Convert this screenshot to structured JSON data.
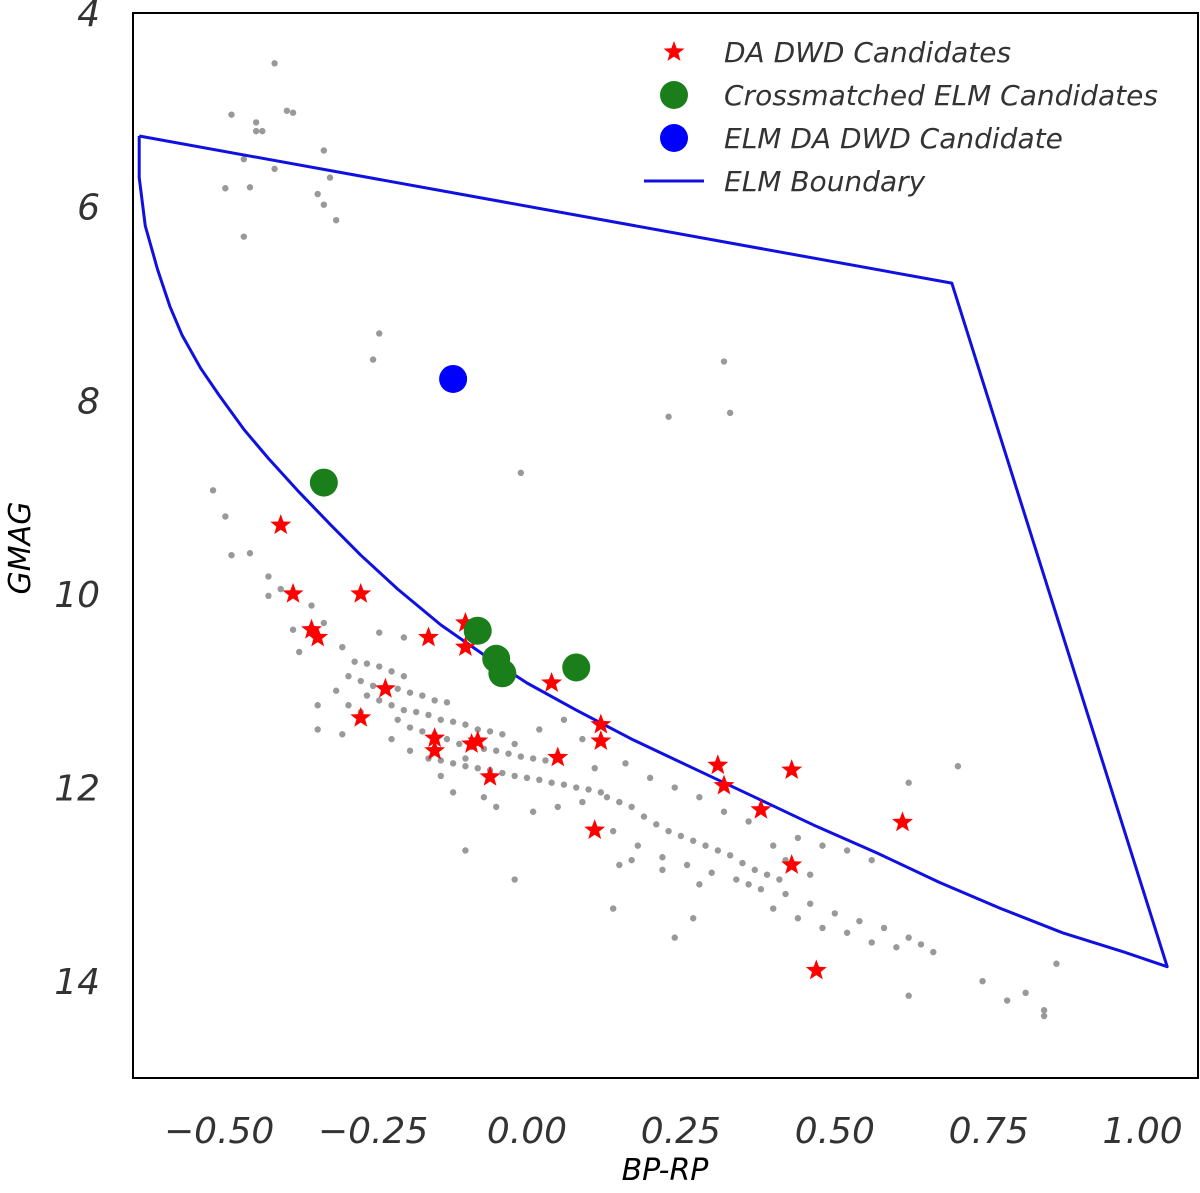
{
  "chart_data": {
    "type": "scatter",
    "title": "",
    "xlabel": "BP-RP",
    "ylabel": "GMAG",
    "xlim": [
      -0.64,
      1.09
    ],
    "ylim": [
      15.0,
      4.0
    ],
    "y_inverted": true,
    "grid": false,
    "legend_position": "top-right",
    "x_ticks": [
      {
        "value": -0.5,
        "label": "−0.50"
      },
      {
        "value": -0.25,
        "label": "−0.25"
      },
      {
        "value": 0.0,
        "label": "0.00"
      },
      {
        "value": 0.25,
        "label": "0.25"
      },
      {
        "value": 0.5,
        "label": "0.50"
      },
      {
        "value": 0.75,
        "label": "0.75"
      },
      {
        "value": 1.0,
        "label": "1.00"
      }
    ],
    "y_ticks": [
      {
        "value": 4,
        "label": "4"
      },
      {
        "value": 6,
        "label": "6"
      },
      {
        "value": 8,
        "label": "8"
      },
      {
        "value": 10,
        "label": "10"
      },
      {
        "value": 12,
        "label": "12"
      },
      {
        "value": 14,
        "label": "14"
      }
    ],
    "colors": {
      "background_points": "#999999",
      "da_dwd": "#ff0000",
      "crossmatched": "#1a7f1a",
      "elm_da_dwd": "#0000ff",
      "boundary": "#1010e0"
    },
    "series": [
      {
        "name": "DA DWD Candidates",
        "marker": "star",
        "color": "#ff0000",
        "points": [
          [
            -0.4,
            9.29
          ],
          [
            -0.38,
            10.0
          ],
          [
            -0.35,
            10.37
          ],
          [
            -0.34,
            10.45
          ],
          [
            -0.27,
            10.0
          ],
          [
            -0.27,
            11.28
          ],
          [
            -0.23,
            10.98
          ],
          [
            -0.16,
            10.45
          ],
          [
            -0.15,
            11.49
          ],
          [
            -0.15,
            11.62
          ],
          [
            -0.1,
            10.3
          ],
          [
            -0.1,
            10.55
          ],
          [
            -0.09,
            11.55
          ],
          [
            -0.08,
            11.52
          ],
          [
            -0.06,
            11.89
          ],
          [
            0.04,
            10.92
          ],
          [
            0.05,
            11.69
          ],
          [
            0.11,
            12.44
          ],
          [
            0.12,
            11.35
          ],
          [
            0.12,
            11.52
          ],
          [
            0.31,
            11.77
          ],
          [
            0.32,
            11.98
          ],
          [
            0.38,
            12.23
          ],
          [
            0.43,
            11.82
          ],
          [
            0.43,
            12.8
          ],
          [
            0.47,
            13.89
          ],
          [
            0.61,
            12.36
          ]
        ]
      },
      {
        "name": "Crossmatched ELM Candidates",
        "marker": "circle-large",
        "color": "#1a7f1a",
        "points": [
          [
            -0.33,
            8.85
          ],
          [
            -0.08,
            10.38
          ],
          [
            -0.05,
            10.67
          ],
          [
            -0.04,
            10.82
          ],
          [
            0.08,
            10.76
          ]
        ]
      },
      {
        "name": "ELM DA DWD Candidate",
        "marker": "circle-large",
        "color": "#0000ff",
        "points": [
          [
            -0.12,
            7.78
          ]
        ]
      },
      {
        "name": "",
        "marker": "dot",
        "color": "#999999",
        "points": [
          [
            -0.41,
            4.52
          ],
          [
            -0.39,
            5.01
          ],
          [
            -0.38,
            5.03
          ],
          [
            -0.48,
            5.05
          ],
          [
            -0.44,
            5.13
          ],
          [
            -0.44,
            5.22
          ],
          [
            -0.43,
            5.22
          ],
          [
            -0.33,
            5.42
          ],
          [
            -0.46,
            5.51
          ],
          [
            -0.41,
            5.61
          ],
          [
            -0.32,
            5.7
          ],
          [
            -0.45,
            5.8
          ],
          [
            -0.49,
            5.81
          ],
          [
            -0.34,
            5.87
          ],
          [
            -0.33,
            5.98
          ],
          [
            -0.31,
            6.14
          ],
          [
            -0.46,
            6.31
          ],
          [
            -0.24,
            7.31
          ],
          [
            -0.25,
            7.58
          ],
          [
            0.32,
            7.6
          ],
          [
            0.33,
            8.13
          ],
          [
            0.23,
            8.17
          ],
          [
            -0.01,
            8.75
          ],
          [
            -0.51,
            8.93
          ],
          [
            -0.49,
            9.2
          ],
          [
            -0.48,
            9.6
          ],
          [
            -0.45,
            9.58
          ],
          [
            -0.42,
            9.82
          ],
          [
            -0.4,
            9.95
          ],
          [
            -0.42,
            10.02
          ],
          [
            -0.35,
            10.12
          ],
          [
            -0.38,
            10.37
          ],
          [
            -0.24,
            10.4
          ],
          [
            -0.2,
            10.45
          ],
          [
            -0.28,
            10.7
          ],
          [
            -0.26,
            10.72
          ],
          [
            -0.24,
            10.75
          ],
          [
            -0.22,
            10.8
          ],
          [
            -0.2,
            10.85
          ],
          [
            -0.29,
            10.85
          ],
          [
            -0.27,
            10.9
          ],
          [
            -0.25,
            10.95
          ],
          [
            -0.21,
            10.98
          ],
          [
            -0.19,
            11.02
          ],
          [
            -0.17,
            11.05
          ],
          [
            -0.15,
            11.1
          ],
          [
            -0.13,
            11.12
          ],
          [
            -0.26,
            11.05
          ],
          [
            -0.24,
            11.1
          ],
          [
            -0.22,
            11.15
          ],
          [
            -0.2,
            11.2
          ],
          [
            -0.18,
            11.22
          ],
          [
            -0.16,
            11.25
          ],
          [
            -0.14,
            11.3
          ],
          [
            -0.12,
            11.32
          ],
          [
            -0.1,
            11.35
          ],
          [
            -0.08,
            11.4
          ],
          [
            -0.06,
            11.42
          ],
          [
            -0.04,
            11.45
          ],
          [
            -0.29,
            11.15
          ],
          [
            -0.27,
            11.22
          ],
          [
            -0.21,
            11.3
          ],
          [
            -0.19,
            11.38
          ],
          [
            -0.17,
            11.42
          ],
          [
            -0.15,
            11.45
          ],
          [
            -0.13,
            11.5
          ],
          [
            -0.11,
            11.55
          ],
          [
            -0.09,
            11.58
          ],
          [
            -0.07,
            11.6
          ],
          [
            -0.05,
            11.62
          ],
          [
            -0.03,
            11.65
          ],
          [
            -0.01,
            11.68
          ],
          [
            0.01,
            11.7
          ],
          [
            0.03,
            11.72
          ],
          [
            -0.16,
            11.7
          ],
          [
            -0.14,
            11.72
          ],
          [
            -0.12,
            11.75
          ],
          [
            -0.1,
            11.78
          ],
          [
            -0.08,
            11.8
          ],
          [
            -0.06,
            11.82
          ],
          [
            -0.04,
            11.85
          ],
          [
            -0.02,
            11.88
          ],
          [
            0.0,
            11.9
          ],
          [
            0.02,
            11.92
          ],
          [
            0.04,
            11.95
          ],
          [
            0.06,
            11.97
          ],
          [
            0.08,
            12.0
          ],
          [
            0.1,
            12.02
          ],
          [
            0.12,
            12.05
          ],
          [
            -0.07,
            12.1
          ],
          [
            -0.05,
            12.2
          ],
          [
            0.01,
            12.25
          ],
          [
            0.05,
            12.2
          ],
          [
            0.09,
            12.15
          ],
          [
            0.13,
            12.1
          ],
          [
            0.15,
            12.15
          ],
          [
            0.17,
            12.2
          ],
          [
            0.19,
            12.3
          ],
          [
            0.21,
            12.38
          ],
          [
            0.23,
            12.45
          ],
          [
            0.25,
            12.5
          ],
          [
            0.27,
            12.55
          ],
          [
            0.29,
            12.6
          ],
          [
            0.31,
            12.65
          ],
          [
            0.33,
            12.7
          ],
          [
            0.35,
            12.78
          ],
          [
            0.37,
            12.85
          ],
          [
            0.39,
            12.9
          ],
          [
            0.41,
            12.95
          ],
          [
            0.14,
            12.45
          ],
          [
            0.18,
            12.6
          ],
          [
            0.22,
            12.72
          ],
          [
            0.26,
            12.8
          ],
          [
            0.3,
            12.88
          ],
          [
            0.34,
            12.95
          ],
          [
            0.38,
            13.05
          ],
          [
            0.42,
            13.1
          ],
          [
            0.46,
            13.2
          ],
          [
            0.5,
            13.3
          ],
          [
            0.54,
            13.38
          ],
          [
            0.58,
            13.45
          ],
          [
            0.62,
            13.55
          ],
          [
            0.64,
            13.62
          ],
          [
            0.66,
            13.7
          ],
          [
            0.27,
            13.35
          ],
          [
            0.24,
            13.55
          ],
          [
            0.14,
            13.25
          ],
          [
            -0.02,
            12.95
          ],
          [
            -0.1,
            12.65
          ],
          [
            0.11,
            11.8
          ],
          [
            0.16,
            11.75
          ],
          [
            0.2,
            11.9
          ],
          [
            0.24,
            12.0
          ],
          [
            0.28,
            12.1
          ],
          [
            0.32,
            12.25
          ],
          [
            0.36,
            12.35
          ],
          [
            0.44,
            12.52
          ],
          [
            0.48,
            12.6
          ],
          [
            0.52,
            12.65
          ],
          [
            0.56,
            12.75
          ],
          [
            0.62,
            11.95
          ],
          [
            0.7,
            11.78
          ],
          [
            0.74,
            14.0
          ],
          [
            0.78,
            14.2
          ],
          [
            0.81,
            14.12
          ],
          [
            0.84,
            14.3
          ],
          [
            0.84,
            14.36
          ],
          [
            0.86,
            13.82
          ],
          [
            0.62,
            14.15
          ],
          [
            -0.33,
            10.3
          ],
          [
            -0.37,
            10.6
          ],
          [
            -0.3,
            10.55
          ],
          [
            -0.31,
            11.0
          ],
          [
            -0.34,
            11.15
          ],
          [
            -0.34,
            11.4
          ],
          [
            -0.3,
            11.45
          ],
          [
            -0.22,
            11.5
          ],
          [
            -0.19,
            11.62
          ],
          [
            -0.14,
            11.88
          ],
          [
            -0.12,
            12.05
          ],
          [
            -0.1,
            11.7
          ],
          [
            -0.02,
            11.55
          ],
          [
            0.02,
            11.4
          ],
          [
            0.06,
            11.3
          ],
          [
            0.09,
            11.5
          ],
          [
            0.15,
            12.8
          ],
          [
            0.17,
            12.75
          ],
          [
            0.22,
            12.85
          ],
          [
            0.28,
            13.0
          ],
          [
            0.36,
            13.0
          ],
          [
            0.4,
            13.25
          ],
          [
            0.44,
            13.35
          ],
          [
            0.48,
            13.45
          ],
          [
            0.52,
            13.5
          ],
          [
            0.56,
            13.6
          ],
          [
            0.6,
            13.65
          ],
          [
            0.42,
            12.75
          ],
          [
            0.46,
            12.9
          ],
          [
            0.4,
            12.6
          ]
        ]
      }
    ],
    "boundary": {
      "name": "ELM Boundary",
      "color": "#1010e0",
      "points": [
        [
          -0.63,
          5.27
        ],
        [
          -0.63,
          5.7
        ],
        [
          -0.62,
          6.2
        ],
        [
          -0.6,
          6.65
        ],
        [
          -0.58,
          7.03
        ],
        [
          -0.56,
          7.33
        ],
        [
          -0.53,
          7.67
        ],
        [
          -0.5,
          7.95
        ],
        [
          -0.46,
          8.3
        ],
        [
          -0.42,
          8.6
        ],
        [
          -0.37,
          8.95
        ],
        [
          -0.32,
          9.28
        ],
        [
          -0.27,
          9.6
        ],
        [
          -0.21,
          9.95
        ],
        [
          -0.14,
          10.32
        ],
        [
          -0.07,
          10.63
        ],
        [
          0.0,
          10.92
        ],
        [
          0.08,
          11.2
        ],
        [
          0.17,
          11.5
        ],
        [
          0.27,
          11.8
        ],
        [
          0.37,
          12.1
        ],
        [
          0.47,
          12.4
        ],
        [
          0.57,
          12.68
        ],
        [
          0.67,
          12.98
        ],
        [
          0.77,
          13.25
        ],
        [
          0.87,
          13.5
        ],
        [
          0.97,
          13.7
        ],
        [
          1.04,
          13.85
        ],
        [
          0.69,
          6.79
        ],
        [
          -0.63,
          5.27
        ]
      ]
    },
    "legend": [
      {
        "label": "DA DWD Candidates",
        "marker": "star",
        "color": "#ff0000"
      },
      {
        "label": "Crossmatched ELM Candidates",
        "marker": "circle",
        "color": "#1a7f1a"
      },
      {
        "label": "ELM DA DWD Candidate",
        "marker": "circle",
        "color": "#0000ff"
      },
      {
        "label": "ELM Boundary",
        "marker": "line",
        "color": "#1010e0"
      }
    ]
  }
}
